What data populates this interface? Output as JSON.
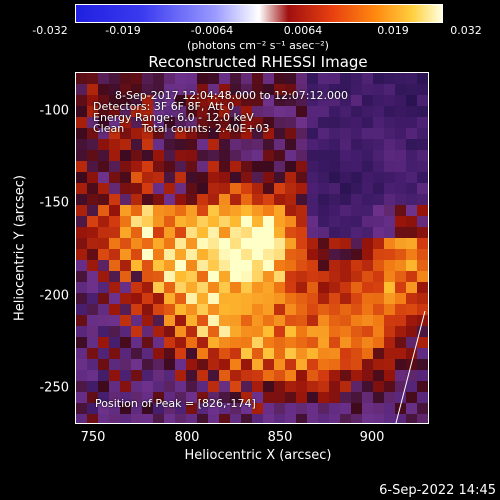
{
  "colorbar": {
    "ticks": [
      "-0.032",
      "-0.019",
      "-0.0064",
      "0.0064",
      "0.019",
      "0.032"
    ],
    "units": "(photons cm⁻² s⁻¹ asec⁻²)"
  },
  "title": "Reconstructed RHESSI Image",
  "annotations": {
    "time_range": "8-Sep-2017 12:04:48.000 to 12:07:12.000",
    "detectors": "Detectors: 3F 6F 8F, Att 0",
    "energy": "Energy Range: 6.0 - 12.0 keV",
    "clean": "Clean     Total counts: 2.40E+03",
    "peak": "Position of Peak = [826,-174]"
  },
  "axes": {
    "xlabel": "Heliocentric X (arcsec)",
    "ylabel": "Heliocentric Y (arcsec)",
    "xticks": [
      "750",
      "800",
      "850",
      "900"
    ],
    "yticks": [
      "-100",
      "-150",
      "-200",
      "-250"
    ]
  },
  "timestamp": "6-Sep-2022 14:45"
}
